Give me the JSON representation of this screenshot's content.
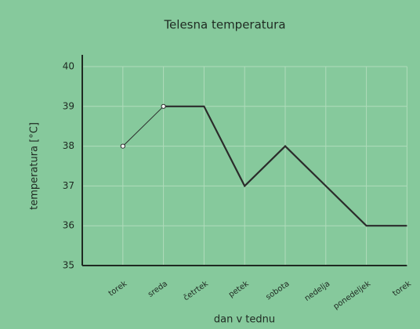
{
  "chart_data": {
    "type": "line",
    "title": "Telesna temperatura",
    "x_label": "dan v tednu",
    "y_label": "temperatura [°C]",
    "categories": [
      "torek",
      "sreda",
      "četrtek",
      "petek",
      "sobota",
      "nedelja",
      "ponedeljek",
      "torek"
    ],
    "values": [
      38,
      39,
      39,
      37,
      38,
      37,
      36,
      36
    ],
    "color": "#2b2b2b",
    "ylim": [
      35,
      40
    ],
    "yticks": [
      35,
      36,
      37,
      38,
      39,
      40
    ],
    "grid": true
  }
}
